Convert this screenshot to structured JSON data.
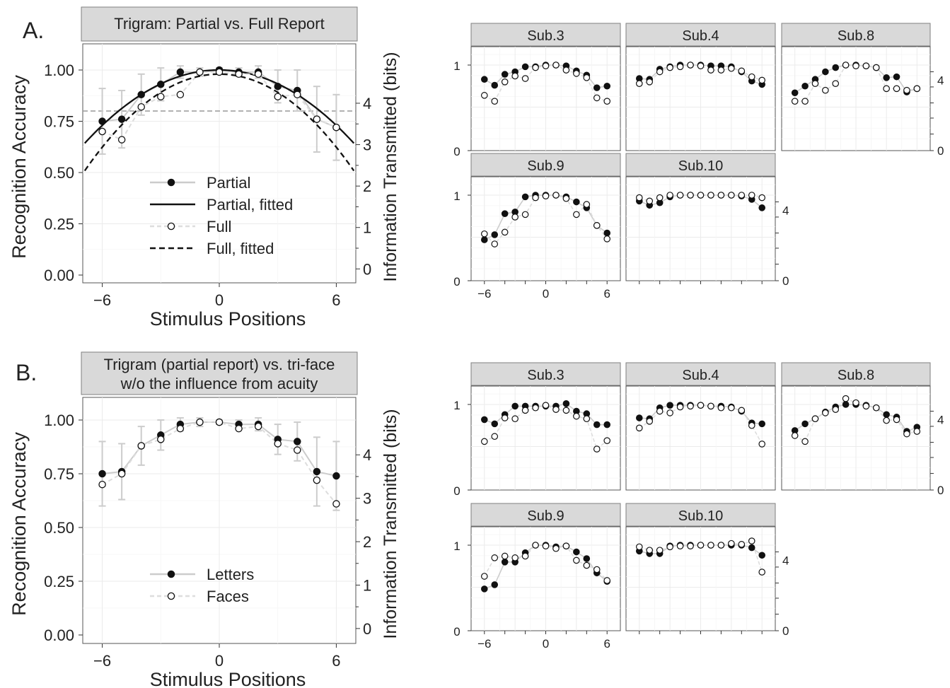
{
  "figure": {
    "section_a_letter": "A.",
    "section_b_letter": "B."
  },
  "chart_data": [
    {
      "id": "A_main",
      "type": "line",
      "title": "Trigram: Partial vs. Full Report",
      "xlabel": "Stimulus Positions",
      "ylabel": "Recognition Accuracy",
      "y2label": "Information Transmitted (bits)",
      "xlim": [
        -7,
        7
      ],
      "ylim": [
        0,
        1
      ],
      "xticks": [
        "−6",
        "0",
        "6"
      ],
      "yticks": [
        "0.00",
        "0.25",
        "0.50",
        "0.75",
        "1.00"
      ],
      "y2ticks": [
        "0",
        "1",
        "2",
        "3",
        "4"
      ],
      "y2_values": [
        0,
        1,
        2,
        3,
        4
      ],
      "y2_positions_in_accuracy": [
        0.03,
        0.232,
        0.434,
        0.636,
        0.838
      ],
      "reference_line_accuracy": 0.8,
      "x": [
        -6,
        -5,
        -4,
        -3,
        -2,
        -1,
        0,
        1,
        2,
        3,
        4,
        5,
        6
      ],
      "series": [
        {
          "name": "Partial",
          "style": "points_line",
          "marker": "filled",
          "color": "#111111",
          "line_color": "#cccccc",
          "values": [
            0.75,
            0.76,
            0.88,
            0.93,
            0.99,
            0.99,
            1.0,
            0.99,
            0.99,
            0.92,
            0.9,
            0.76,
            0.72
          ],
          "error": [
            0.16,
            0.14,
            0.1,
            0.08,
            0.03,
            0.02,
            0.01,
            0.02,
            0.03,
            0.08,
            0.1,
            0.16,
            0.16
          ]
        },
        {
          "name": "Partial, fitted",
          "style": "curve",
          "dash": "none",
          "color": "#111111",
          "fit": {
            "peak": 1.0,
            "center": 0,
            "curv": 0.0075
          }
        },
        {
          "name": "Full",
          "style": "points_line",
          "marker": "open",
          "color": "#111111",
          "line_color": "#dddddd",
          "line_dash": "6,4",
          "values": [
            0.7,
            0.66,
            0.82,
            0.87,
            0.88,
            0.99,
            0.99,
            0.98,
            0.98,
            0.87,
            0.88,
            0.76,
            0.72
          ]
        },
        {
          "name": "Full, fitted",
          "style": "curve",
          "dash": "8,5",
          "color": "#111111",
          "fit": {
            "peak": 0.98,
            "center": 0,
            "curv": 0.0099
          }
        }
      ],
      "legend": "bottom-center"
    },
    {
      "id": "A_sub3",
      "type": "scatter",
      "title": "Sub.3",
      "x": [
        -6,
        -5,
        -4,
        -3,
        -2,
        -1,
        0,
        1,
        2,
        3,
        4,
        5,
        6
      ],
      "ylim": [
        0,
        1
      ],
      "yticks": [
        "0",
        "1"
      ],
      "series": [
        {
          "name": "",
          "marker": "filled",
          "values": [
            0.83,
            0.76,
            0.89,
            0.92,
            0.98,
            0.98,
            1.0,
            1.0,
            0.99,
            0.93,
            0.88,
            0.73,
            0.75
          ]
        },
        {
          "name": "",
          "marker": "open",
          "values": [
            0.64,
            0.57,
            0.8,
            0.87,
            0.84,
            0.97,
            0.99,
            1.0,
            0.94,
            0.9,
            0.85,
            0.61,
            0.57
          ]
        }
      ]
    },
    {
      "id": "A_sub4",
      "type": "scatter",
      "title": "Sub.4",
      "x": [
        -6,
        -5,
        -4,
        -3,
        -2,
        -1,
        0,
        1,
        2,
        3,
        4,
        5,
        6
      ],
      "ylim": [
        0,
        1
      ],
      "series": [
        {
          "name": "",
          "marker": "filled",
          "values": [
            0.84,
            0.83,
            0.95,
            0.98,
            1.0,
            1.0,
            1.0,
            0.99,
            0.99,
            0.98,
            0.92,
            0.81,
            0.77
          ]
        },
        {
          "name": "",
          "marker": "open",
          "values": [
            0.78,
            0.8,
            0.92,
            0.97,
            0.98,
            1.0,
            0.99,
            0.94,
            0.94,
            0.96,
            0.93,
            0.86,
            0.82
          ]
        }
      ]
    },
    {
      "id": "A_sub8",
      "type": "scatter",
      "title": "Sub.8",
      "x": [
        -6,
        -5,
        -4,
        -3,
        -2,
        -1,
        0,
        1,
        2,
        3,
        4,
        5,
        6
      ],
      "ylim": [
        0,
        1
      ],
      "y2ticks": [
        "0",
        "4"
      ],
      "y2_positions": [
        0,
        0.9
      ],
      "series": [
        {
          "name": "",
          "marker": "filled",
          "values": [
            0.67,
            0.75,
            0.83,
            0.92,
            0.97,
            1.0,
            1.0,
            0.99,
            0.97,
            0.85,
            0.86,
            0.68,
            0.72
          ]
        },
        {
          "name": "",
          "marker": "open",
          "values": [
            0.57,
            0.57,
            0.78,
            0.7,
            0.78,
            1.0,
            0.99,
            0.99,
            0.97,
            0.72,
            0.72,
            0.7,
            0.72
          ]
        }
      ]
    },
    {
      "id": "A_sub9",
      "type": "scatter",
      "title": "Sub.9",
      "x": [
        -6,
        -5,
        -4,
        -3,
        -2,
        -1,
        0,
        1,
        2,
        3,
        4,
        5,
        6
      ],
      "ylim": [
        0,
        1
      ],
      "yticks": [
        "0",
        "1"
      ],
      "xticks": [
        "−6",
        "0",
        "6"
      ],
      "series": [
        {
          "name": "",
          "marker": "filled",
          "values": [
            0.47,
            0.53,
            0.78,
            0.8,
            0.98,
            1.0,
            1.0,
            1.0,
            0.98,
            0.92,
            0.85,
            0.64,
            0.55
          ]
        },
        {
          "name": "",
          "marker": "open",
          "values": [
            0.54,
            0.42,
            0.56,
            0.74,
            0.77,
            0.97,
            0.99,
            1.0,
            0.96,
            0.77,
            0.89,
            0.64,
            0.48
          ]
        }
      ]
    },
    {
      "id": "A_sub10",
      "type": "scatter",
      "title": "Sub.10",
      "x": [
        -6,
        -5,
        -4,
        -3,
        -2,
        -1,
        0,
        1,
        2,
        3,
        4,
        5,
        6
      ],
      "ylim": [
        0,
        1
      ],
      "y2ticks": [
        "0",
        "4"
      ],
      "y2_positions": [
        0,
        0.9
      ],
      "series": [
        {
          "name": "",
          "marker": "filled",
          "values": [
            0.93,
            0.88,
            0.91,
            0.98,
            1.0,
            1.0,
            1.0,
            1.0,
            1.0,
            1.0,
            0.99,
            0.95,
            0.85
          ]
        },
        {
          "name": "",
          "marker": "open",
          "values": [
            0.97,
            0.93,
            0.97,
            1.0,
            1.0,
            1.0,
            1.0,
            1.0,
            1.0,
            1.0,
            1.0,
            1.0,
            0.97
          ]
        }
      ]
    },
    {
      "id": "B_main",
      "type": "line",
      "title_line1": "Trigram (partial report) vs. tri-face",
      "title_line2": "w/o the influence from acuity",
      "xlabel": "Stimulus Positions",
      "ylabel": "Recognition Accuracy",
      "y2label": "Information Transmitted (bits)",
      "xlim": [
        -7,
        7
      ],
      "ylim": [
        0,
        1
      ],
      "xticks": [
        "−6",
        "0",
        "6"
      ],
      "yticks": [
        "0.00",
        "0.25",
        "0.50",
        "0.75",
        "1.00"
      ],
      "y2ticks": [
        "0",
        "1",
        "2",
        "3",
        "4"
      ],
      "y2_values": [
        0,
        1,
        2,
        3,
        4
      ],
      "y2_positions_in_accuracy": [
        0.03,
        0.232,
        0.434,
        0.636,
        0.838
      ],
      "x": [
        -6,
        -5,
        -4,
        -3,
        -2,
        -1,
        0,
        1,
        2,
        3,
        4,
        5,
        6
      ],
      "series": [
        {
          "name": "Letters",
          "style": "points_line",
          "marker": "filled",
          "color": "#111111",
          "line_color": "#cccccc",
          "values": [
            0.75,
            0.76,
            0.88,
            0.93,
            0.98,
            0.99,
            0.99,
            0.98,
            0.98,
            0.91,
            0.9,
            0.76,
            0.74
          ],
          "error": [
            0.15,
            0.13,
            0.09,
            0.07,
            0.03,
            0.02,
            0.01,
            0.02,
            0.03,
            0.07,
            0.09,
            0.16,
            0.16
          ]
        },
        {
          "name": "Faces",
          "style": "points_line",
          "marker": "open",
          "color": "#111111",
          "line_color": "#dddddd",
          "line_dash": "6,4",
          "values": [
            0.7,
            0.75,
            0.88,
            0.91,
            0.96,
            0.99,
            0.99,
            0.96,
            0.97,
            0.89,
            0.86,
            0.72,
            0.61
          ]
        }
      ],
      "legend": "bottom-center"
    },
    {
      "id": "B_sub3",
      "type": "scatter",
      "title": "Sub.3",
      "x": [
        -6,
        -5,
        -4,
        -3,
        -2,
        -1,
        0,
        1,
        2,
        3,
        4,
        5,
        6
      ],
      "ylim": [
        0,
        1
      ],
      "yticks": [
        "0",
        "1"
      ],
      "series": [
        {
          "name": "",
          "marker": "filled",
          "values": [
            0.82,
            0.77,
            0.88,
            0.98,
            0.98,
            0.98,
            0.98,
            0.98,
            1.01,
            0.92,
            0.89,
            0.76,
            0.76
          ]
        },
        {
          "name": "",
          "marker": "open",
          "values": [
            0.56,
            0.62,
            0.84,
            0.83,
            0.93,
            0.96,
            0.99,
            0.94,
            0.93,
            0.86,
            0.83,
            0.47,
            0.57
          ]
        }
      ]
    },
    {
      "id": "B_sub4",
      "type": "scatter",
      "title": "Sub.4",
      "x": [
        -6,
        -5,
        -4,
        -3,
        -2,
        -1,
        0,
        1,
        2,
        3,
        4,
        5,
        6
      ],
      "ylim": [
        0,
        1
      ],
      "series": [
        {
          "name": "",
          "marker": "filled",
          "values": [
            0.84,
            0.83,
            0.96,
            0.99,
            0.99,
            0.99,
            0.99,
            0.98,
            0.98,
            0.97,
            0.92,
            0.78,
            0.77
          ]
        },
        {
          "name": "",
          "marker": "open",
          "values": [
            0.72,
            0.8,
            0.92,
            0.9,
            0.97,
            0.98,
            0.99,
            0.98,
            0.96,
            0.96,
            0.93,
            0.75,
            0.53
          ]
        }
      ]
    },
    {
      "id": "B_sub8",
      "type": "scatter",
      "title": "Sub.8",
      "x": [
        -6,
        -5,
        -4,
        -3,
        -2,
        -1,
        0,
        1,
        2,
        3,
        4,
        5,
        6
      ],
      "ylim": [
        0,
        1
      ],
      "y2ticks": [
        "0",
        "4"
      ],
      "y2_positions": [
        0,
        0.9
      ],
      "series": [
        {
          "name": "",
          "marker": "filled",
          "values": [
            0.69,
            0.77,
            0.83,
            0.91,
            0.97,
            1.0,
            1.0,
            0.99,
            0.96,
            0.88,
            0.85,
            0.68,
            0.73
          ]
        },
        {
          "name": "",
          "marker": "open",
          "values": [
            0.63,
            0.56,
            0.83,
            0.9,
            0.94,
            1.07,
            1.02,
            0.98,
            0.96,
            0.81,
            0.82,
            0.65,
            0.68
          ]
        }
      ]
    },
    {
      "id": "B_sub9",
      "type": "scatter",
      "title": "Sub.9",
      "x": [
        -6,
        -5,
        -4,
        -3,
        -2,
        -1,
        0,
        1,
        2,
        3,
        4,
        5,
        6
      ],
      "ylim": [
        0,
        1
      ],
      "yticks": [
        "0",
        "1"
      ],
      "xticks": [
        "−6",
        "0",
        "6"
      ],
      "series": [
        {
          "name": "",
          "marker": "filled",
          "values": [
            0.48,
            0.53,
            0.8,
            0.8,
            0.91,
            1.0,
            1.0,
            0.98,
            0.99,
            0.92,
            0.84,
            0.67,
            0.57
          ]
        },
        {
          "name": "",
          "marker": "open",
          "values": [
            0.63,
            0.85,
            0.87,
            0.85,
            0.87,
            1.0,
            0.99,
            0.96,
            0.99,
            0.82,
            0.76,
            0.71,
            0.58
          ]
        }
      ]
    },
    {
      "id": "B_sub10",
      "type": "scatter",
      "title": "Sub.10",
      "x": [
        -6,
        -5,
        -4,
        -3,
        -2,
        -1,
        0,
        1,
        2,
        3,
        4,
        5,
        6
      ],
      "ylim": [
        0,
        1
      ],
      "y2ticks": [
        "0",
        "4"
      ],
      "y2_positions": [
        0,
        0.9
      ],
      "series": [
        {
          "name": "",
          "marker": "filled",
          "values": [
            0.93,
            0.9,
            0.9,
            0.99,
            1.0,
            1.0,
            1.0,
            1.0,
            1.0,
            1.0,
            1.0,
            0.97,
            0.88
          ]
        },
        {
          "name": "",
          "marker": "open",
          "values": [
            0.98,
            0.94,
            0.94,
            0.98,
            0.99,
            0.99,
            1.0,
            1.0,
            1.0,
            1.02,
            1.01,
            1.05,
            0.68
          ]
        }
      ]
    }
  ]
}
